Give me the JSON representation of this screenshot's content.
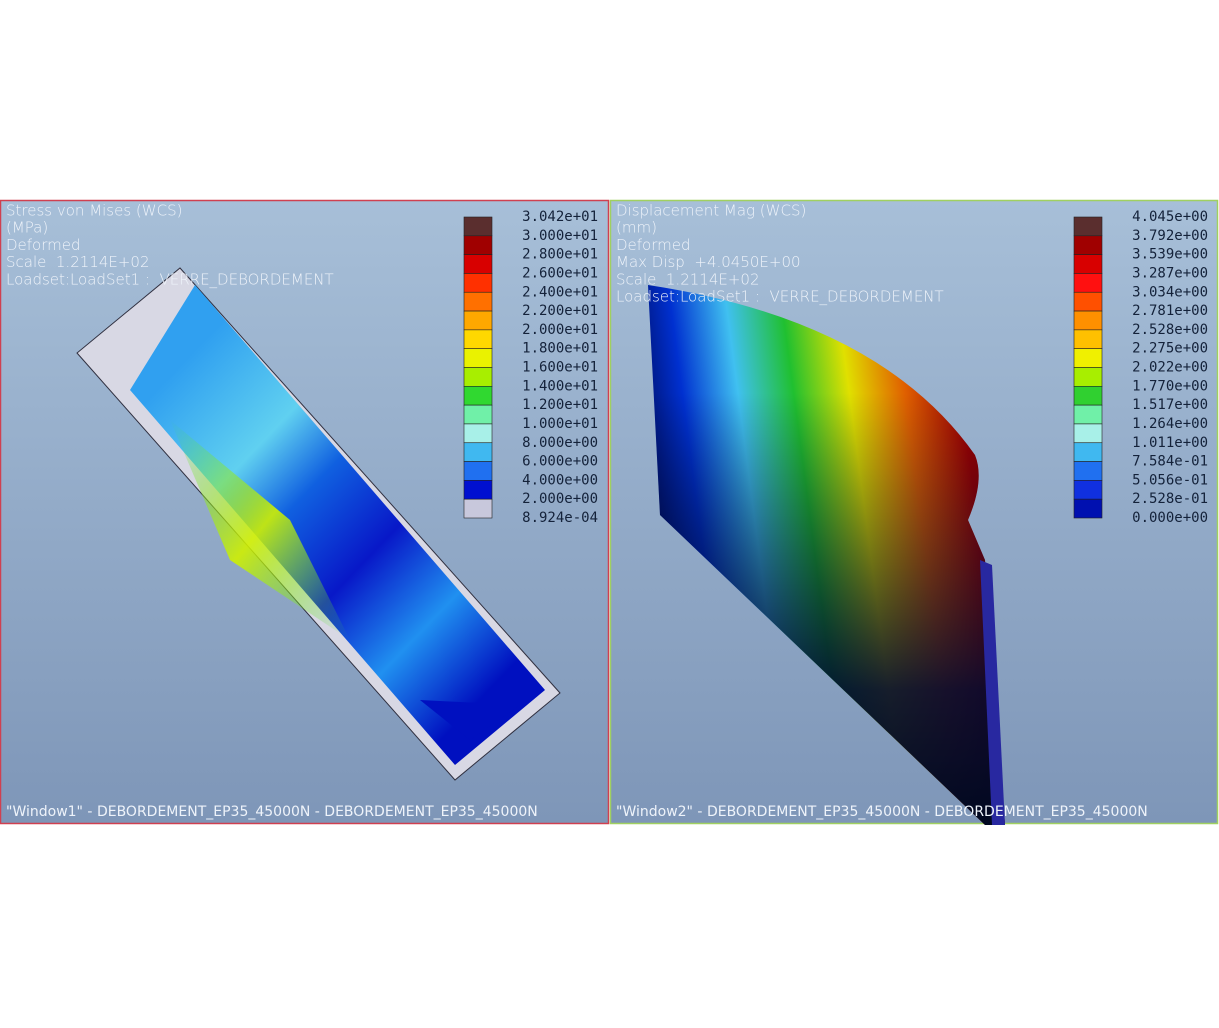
{
  "windows": [
    {
      "lines": [
        "Stress von Mises (WCS)",
        "(MPa)",
        "Deformed",
        "Scale  1.2114E+02",
        "Loadset:LoadSet1 :  VERRE_DEBORDEMENT"
      ],
      "legend": {
        "labels": [
          "3.042e+01",
          "3.000e+01",
          "2.800e+01",
          "2.600e+01",
          "2.400e+01",
          "2.200e+01",
          "2.000e+01",
          "1.800e+01",
          "1.600e+01",
          "1.400e+01",
          "1.200e+01",
          "1.000e+01",
          "8.000e+00",
          "6.000e+00",
          "4.000e+00",
          "2.000e+00",
          "8.924e-04"
        ],
        "colors": [
          "#5a2e2e",
          "#a00000",
          "#d80000",
          "#ff3000",
          "#ff7000",
          "#ffa800",
          "#ffd800",
          "#eaf200",
          "#a8ee00",
          "#30d830",
          "#70f0a8",
          "#a8f0e8",
          "#40b8f0",
          "#2070f0",
          "#0010d0",
          "#c8c8dc"
        ]
      },
      "footer": "\"Window1\" - DEBORDEMENT_EP35_45000N - DEBORDEMENT_EP35_45000N"
    },
    {
      "lines": [
        "Displacement Mag (WCS)",
        "(mm)",
        "Deformed",
        "Max Disp  +4.0450E+00",
        "Scale  1.2114E+02",
        "Loadset:LoadSet1 :  VERRE_DEBORDEMENT"
      ],
      "legend": {
        "labels": [
          "4.045e+00",
          "3.792e+00",
          "3.539e+00",
          "3.287e+00",
          "3.034e+00",
          "2.781e+00",
          "2.528e+00",
          "2.275e+00",
          "2.022e+00",
          "1.770e+00",
          "1.517e+00",
          "1.264e+00",
          "1.011e+00",
          "7.584e-01",
          "5.056e-01",
          "2.528e-01",
          "0.000e+00"
        ],
        "colors": [
          "#5a2e2e",
          "#a00000",
          "#d80000",
          "#ff1010",
          "#ff5000",
          "#ff9000",
          "#ffc000",
          "#f0f000",
          "#a8ee00",
          "#30d030",
          "#70f0a8",
          "#a8f0e8",
          "#40b8f0",
          "#2070f0",
          "#1030e0",
          "#0010b0"
        ]
      },
      "footer": "\"Window2\" - DEBORDEMENT_EP35_45000N - DEBORDEMENT_EP35_45000N"
    }
  ]
}
